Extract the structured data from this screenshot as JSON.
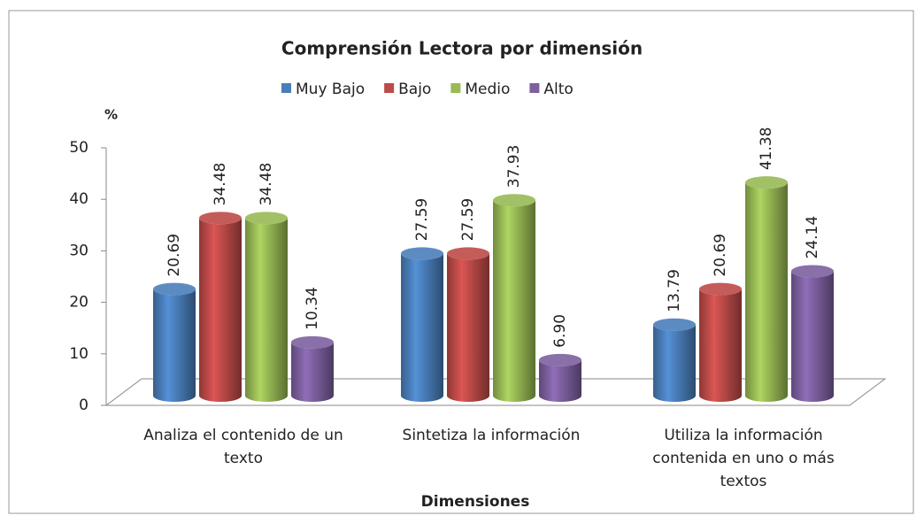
{
  "chart_data": {
    "type": "bar",
    "title": "Comprensión Lectora por dimensión",
    "y_label": "%",
    "x_label": "Dimensiones",
    "categories": [
      "Analiza el contenido de un texto",
      "Sintetiza la información",
      "Utiliza la información contenida en uno o más textos"
    ],
    "series": [
      {
        "name": "Muy Bajo",
        "color": "#4a7ebb",
        "values": [
          20.69,
          27.59,
          13.79
        ],
        "value_labels": [
          "20.69",
          "27.59",
          "13.79"
        ]
      },
      {
        "name": "Bajo",
        "color": "#be4b48",
        "values": [
          34.48,
          27.59,
          20.69
        ],
        "value_labels": [
          "34.48",
          "27.59",
          "20.69"
        ]
      },
      {
        "name": "Medio",
        "color": "#98b954",
        "values": [
          34.48,
          37.93,
          41.38
        ],
        "value_labels": [
          "34.48",
          "37.93",
          "41.38"
        ]
      },
      {
        "name": "Alto",
        "color": "#7d60a0",
        "values": [
          10.34,
          6.9,
          24.14
        ],
        "value_labels": [
          "10.34",
          "6.90",
          "24.14"
        ]
      }
    ],
    "ylim": [
      0,
      50
    ],
    "yticks": [
      0,
      10,
      20,
      30,
      40,
      50
    ],
    "legend": "top"
  }
}
